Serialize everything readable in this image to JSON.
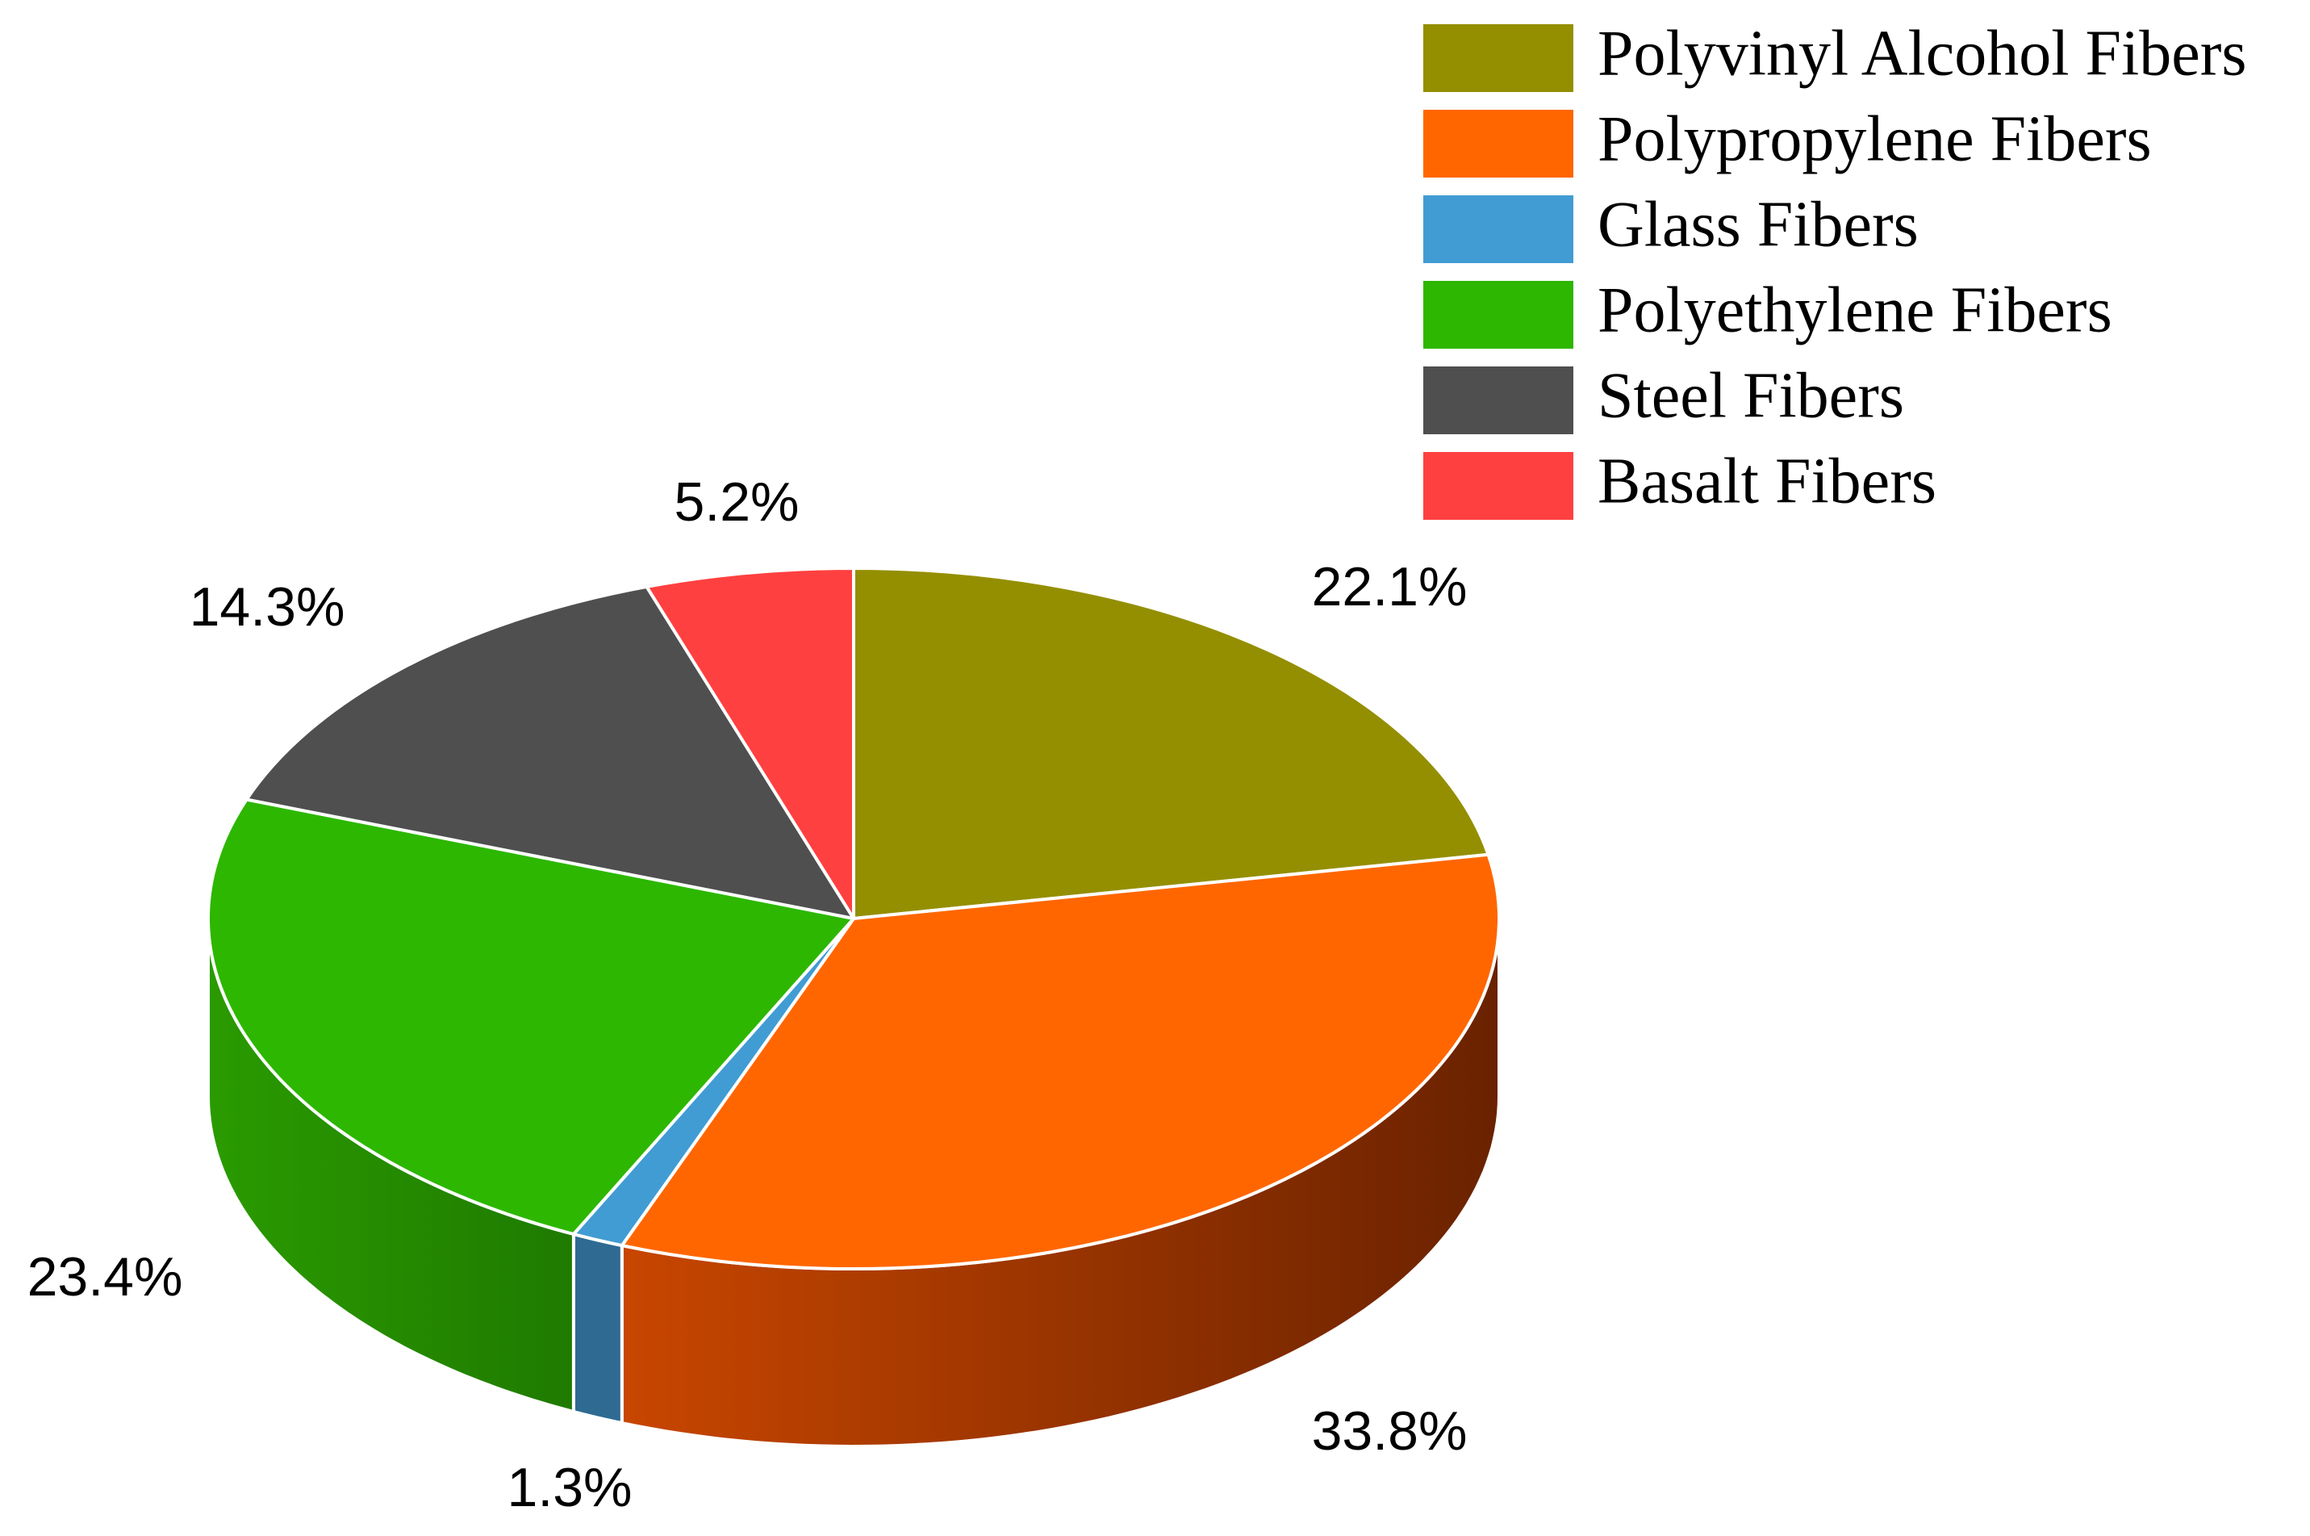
{
  "chart_data": {
    "type": "pie",
    "style": "3d",
    "title": "",
    "series": [
      {
        "name": "Polyvinyl Alcohol Fibers",
        "value": 22.1,
        "label": "22.1%",
        "color": "#948F00",
        "side_dark": "#6E6A00"
      },
      {
        "name": "Polypropylene Fibers",
        "value": 33.8,
        "label": "33.8%",
        "color": "#FF6600",
        "side_light": "#C84600",
        "side_dark": "#6A2200"
      },
      {
        "name": "Glass Fibers",
        "value": 1.3,
        "label": "1.3%",
        "color": "#419CD3",
        "side_dark": "#2E6A92"
      },
      {
        "name": "Polyethylene Fibers",
        "value": 23.4,
        "label": "23.4%",
        "color": "#2DB700",
        "side_light": "#2A9B00",
        "side_dark": "#1F7A00"
      },
      {
        "name": "Steel Fibers",
        "value": 14.3,
        "label": "14.3%",
        "color": "#4F4F4F",
        "side_dark": "#333333"
      },
      {
        "name": "Basalt Fibers",
        "value": 5.2,
        "label": "5.2%",
        "color": "#FF4040",
        "side_dark": "#B02020"
      }
    ],
    "start_position": "12 o'clock",
    "direction": "clockwise",
    "legend_position": "top-right",
    "slice_separator_color": "#FFFFFF"
  }
}
